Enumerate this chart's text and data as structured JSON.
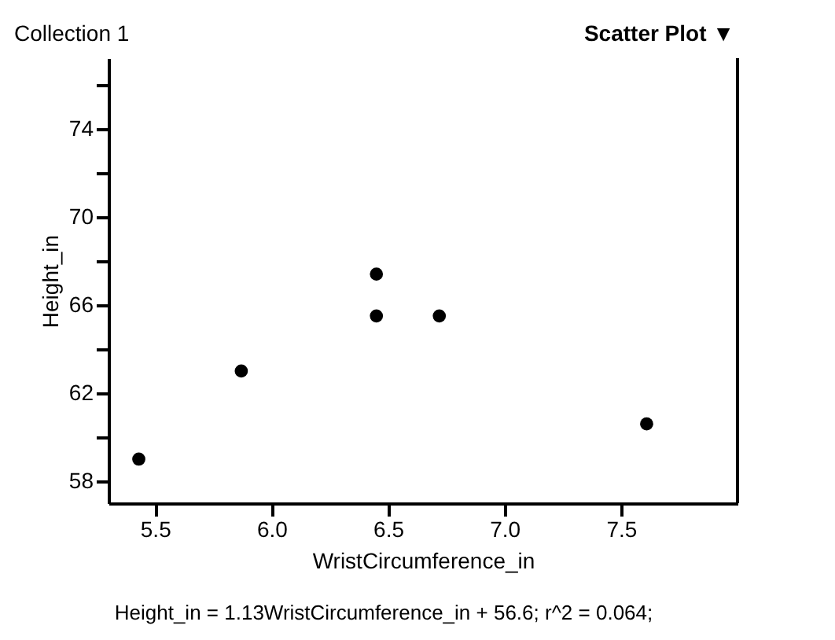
{
  "chart_data": {
    "type": "scatter",
    "title": "Collection 1",
    "xlabel": "WristCircumference_in",
    "ylabel": "Height_in",
    "x": [
      5.43,
      5.87,
      6.45,
      6.45,
      6.72,
      7.61
    ],
    "series": [
      {
        "color": "#000000",
        "values": [
          59.0,
          63.0,
          67.4,
          65.5,
          65.5,
          60.6
        ]
      }
    ],
    "xlim": [
      5.3,
      8.0
    ],
    "xticks": [
      5.5,
      {
        "value": 6,
        "label": "6.0"
      },
      6.5,
      {
        "value": 7,
        "label": "7.0"
      },
      7.5
    ],
    "ylim": [
      57,
      77.2
    ],
    "yticks": [
      58,
      {
        "value": 60,
        "label": null
      },
      62,
      {
        "value": 64,
        "label": null
      },
      66,
      {
        "value": 68,
        "label": null
      },
      70,
      {
        "value": 72,
        "label": null
      },
      74,
      {
        "value": 76,
        "label": null
      }
    ],
    "marker": "circle",
    "grid": false,
    "annotations": [
      "Scatter Plot ▼",
      "Height_in = 1.13WristCircumference_in + 56.6; r^2 = 0.064;"
    ]
  }
}
